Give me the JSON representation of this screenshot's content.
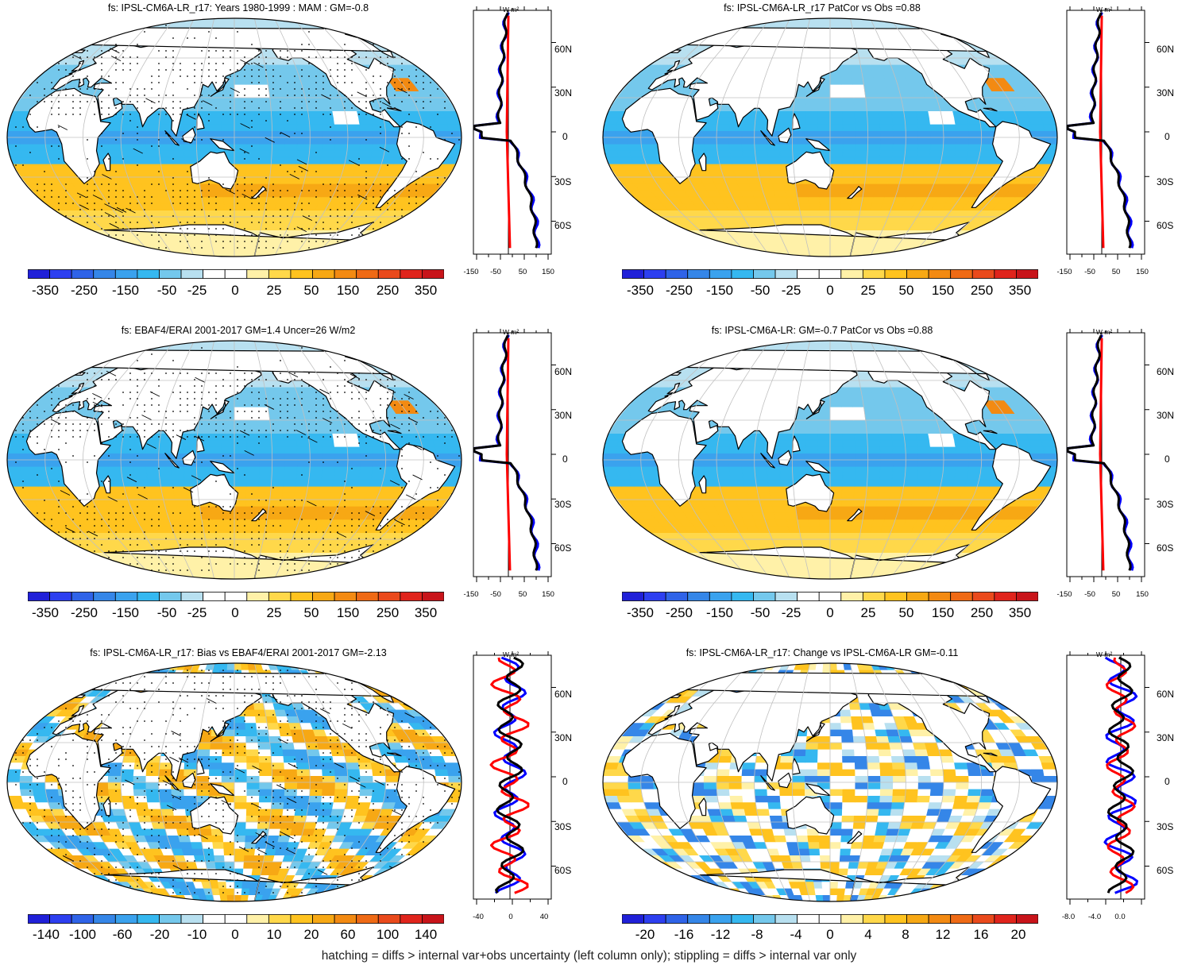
{
  "footer_note": "hatching = diffs > internal var+obs uncertainty (left column only); stippling = diffs > internal var only",
  "profile_unit": "W m²",
  "profile_lat_labels": [
    "60N",
    "30N",
    "0",
    "30S",
    "60S"
  ],
  "palette": [
    "#2020d8",
    "#2d3ff0",
    "#2f63e8",
    "#3586e8",
    "#3aa2ee",
    "#35b8f0",
    "#74c8ec",
    "#b8e0f0",
    "#ffffff",
    "#ffffff",
    "#fff1a8",
    "#ffd84a",
    "#ffc31f",
    "#f7a814",
    "#f38a12",
    "#ef6a15",
    "#ea4a1c",
    "#e0241c",
    "#c8141a"
  ],
  "colors": {
    "land": "#ffffff",
    "coast": "#000000",
    "grid": "#c0c0c0",
    "obs_line": "#0000ff",
    "model_line": "#000000",
    "diff_line": "#ff0000"
  },
  "panels": [
    {
      "id": "p1",
      "title": "fs: IPSL-CM6A-LR_r17: Years 1980-1999 : MAM : GM=-0.8",
      "colorbar_labels": [
        "-350",
        "-250",
        "-150",
        "-50",
        "-25",
        "0",
        "25",
        "50",
        "150",
        "250",
        "350"
      ],
      "profile_xticks": [
        "-150",
        "-50",
        "50",
        "150"
      ],
      "stippled": true,
      "field": "mean"
    },
    {
      "id": "p2",
      "title": "fs: IPSL-CM6A-LR_r17 PatCor vs Obs =0.88",
      "colorbar_labels": [
        "-350",
        "-250",
        "-150",
        "-50",
        "-25",
        "0",
        "25",
        "50",
        "150",
        "250",
        "350"
      ],
      "profile_xticks": [
        "-150",
        "-50",
        "50",
        "150"
      ],
      "stippled": false,
      "field": "mean"
    },
    {
      "id": "p3",
      "title": "fs: EBAF4/ERAI 2001-2017 GM=1.4 Uncer=26 W/m2",
      "colorbar_labels": [
        "-350",
        "-250",
        "-150",
        "-50",
        "-25",
        "0",
        "25",
        "50",
        "150",
        "250",
        "350"
      ],
      "profile_xticks": [
        "-150",
        "-50",
        "50",
        "150"
      ],
      "stippled": true,
      "field": "mean"
    },
    {
      "id": "p4",
      "title": "fs: IPSL-CM6A-LR: GM=-0.7 PatCor vs Obs =0.88",
      "colorbar_labels": [
        "-350",
        "-250",
        "-150",
        "-50",
        "-25",
        "0",
        "25",
        "50",
        "150",
        "250",
        "350"
      ],
      "profile_xticks": [
        "-150",
        "-50",
        "50",
        "150"
      ],
      "stippled": false,
      "field": "mean"
    },
    {
      "id": "p5",
      "title": "fs: IPSL-CM6A-LR_r17: Bias vs EBAF4/ERAI 2001-2017 GM=-2.13",
      "colorbar_labels": [
        "-140",
        "-100",
        "-60",
        "-20",
        "-10",
        "0",
        "10",
        "20",
        "60",
        "100",
        "140"
      ],
      "profile_xticks": [
        "-40",
        "0",
        "40"
      ],
      "stippled": true,
      "field": "bias"
    },
    {
      "id": "p6",
      "title": "fs: IPSL-CM6A-LR_r17: Change vs IPSL-CM6A-LR GM=-0.11",
      "colorbar_labels": [
        "-20",
        "-16",
        "-12",
        "-8",
        "-4",
        "0",
        "4",
        "8",
        "12",
        "16",
        "20"
      ],
      "profile_xticks": [
        "-8.0",
        "-4.0",
        "0.0"
      ],
      "stippled": false,
      "field": "change"
    }
  ]
}
